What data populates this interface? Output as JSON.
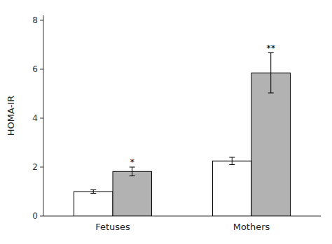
{
  "chart_data": {
    "type": "bar",
    "categories": [
      "Fetuses",
      "Mothers"
    ],
    "series": [
      {
        "color": "white",
        "values": [
          1.0,
          2.25
        ],
        "errors": [
          0.07,
          0.15
        ]
      },
      {
        "color": "#b2b2b2",
        "values": [
          1.82,
          5.85
        ],
        "errors": [
          0.18,
          0.82
        ],
        "annotations": [
          "*",
          "**"
        ]
      }
    ],
    "ylabel": "HOMA-IR",
    "ylim": [
      0,
      8.2
    ],
    "yticks": [
      0,
      2,
      4,
      6,
      8
    ],
    "grid": false
  }
}
